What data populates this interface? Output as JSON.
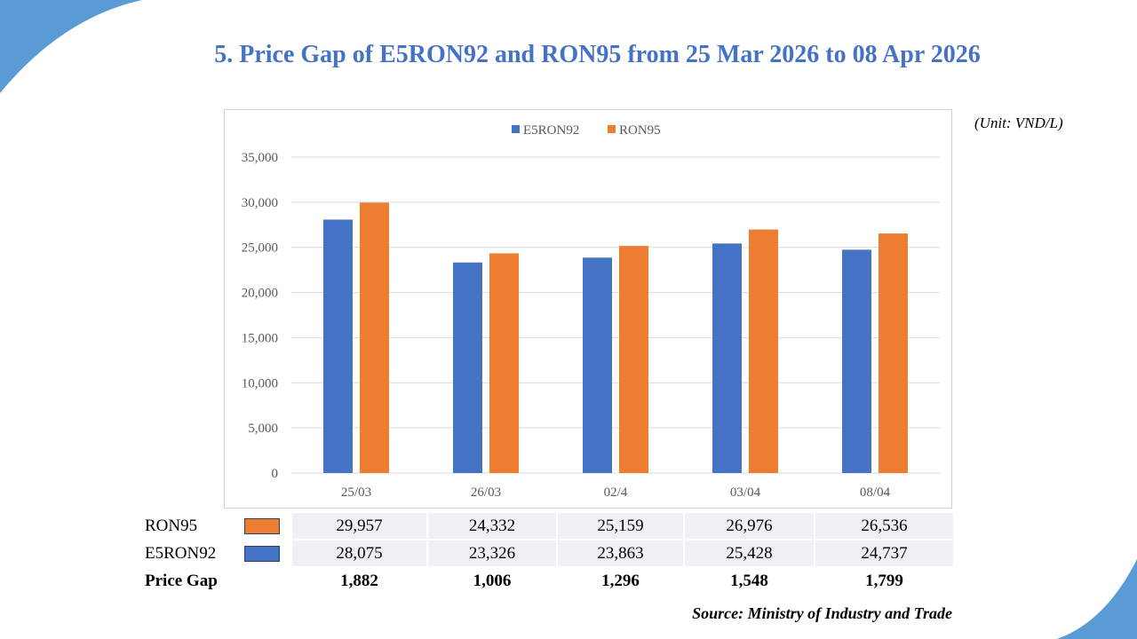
{
  "page": {
    "title": "5. Price Gap of E5RON92 and RON95 from 25 Mar 2026 to 08 Apr 2026",
    "unit": "(Unit: VND/L)",
    "source": "Source: Ministry of Industry and Trade"
  },
  "colors": {
    "accent": "#4472C4",
    "e5ron92": "#4472C4",
    "ron95": "#ED7D31",
    "corner": "#5B9BD5"
  },
  "chart_data": {
    "type": "bar",
    "categories": [
      "25/03",
      "26/03",
      "02/4",
      "03/04",
      "08/04"
    ],
    "series": [
      {
        "name": "E5RON92",
        "values": [
          28075,
          23326,
          23863,
          25428,
          24737
        ]
      },
      {
        "name": "RON95",
        "values": [
          29957,
          24332,
          25159,
          26976,
          26536
        ]
      }
    ],
    "ylim": [
      0,
      35000
    ],
    "yticks": [
      "0",
      "5,000",
      "10,000",
      "15,000",
      "20,000",
      "25,000",
      "30,000",
      "35,000"
    ],
    "grid": true,
    "legend": "top-center"
  },
  "table": {
    "rows": [
      {
        "label": "RON95",
        "swatch": "#ED7D31",
        "values": [
          "29,957",
          "24,332",
          "25,159",
          "26,976",
          "26,536"
        ]
      },
      {
        "label": "E5RON92",
        "swatch": "#4472C4",
        "values": [
          "28,075",
          "23,326",
          "23,863",
          "25,428",
          "24,737"
        ]
      },
      {
        "label": "Price Gap",
        "values": [
          "1,882",
          "1,006",
          "1,296",
          "1,548",
          "1,799"
        ]
      }
    ]
  }
}
